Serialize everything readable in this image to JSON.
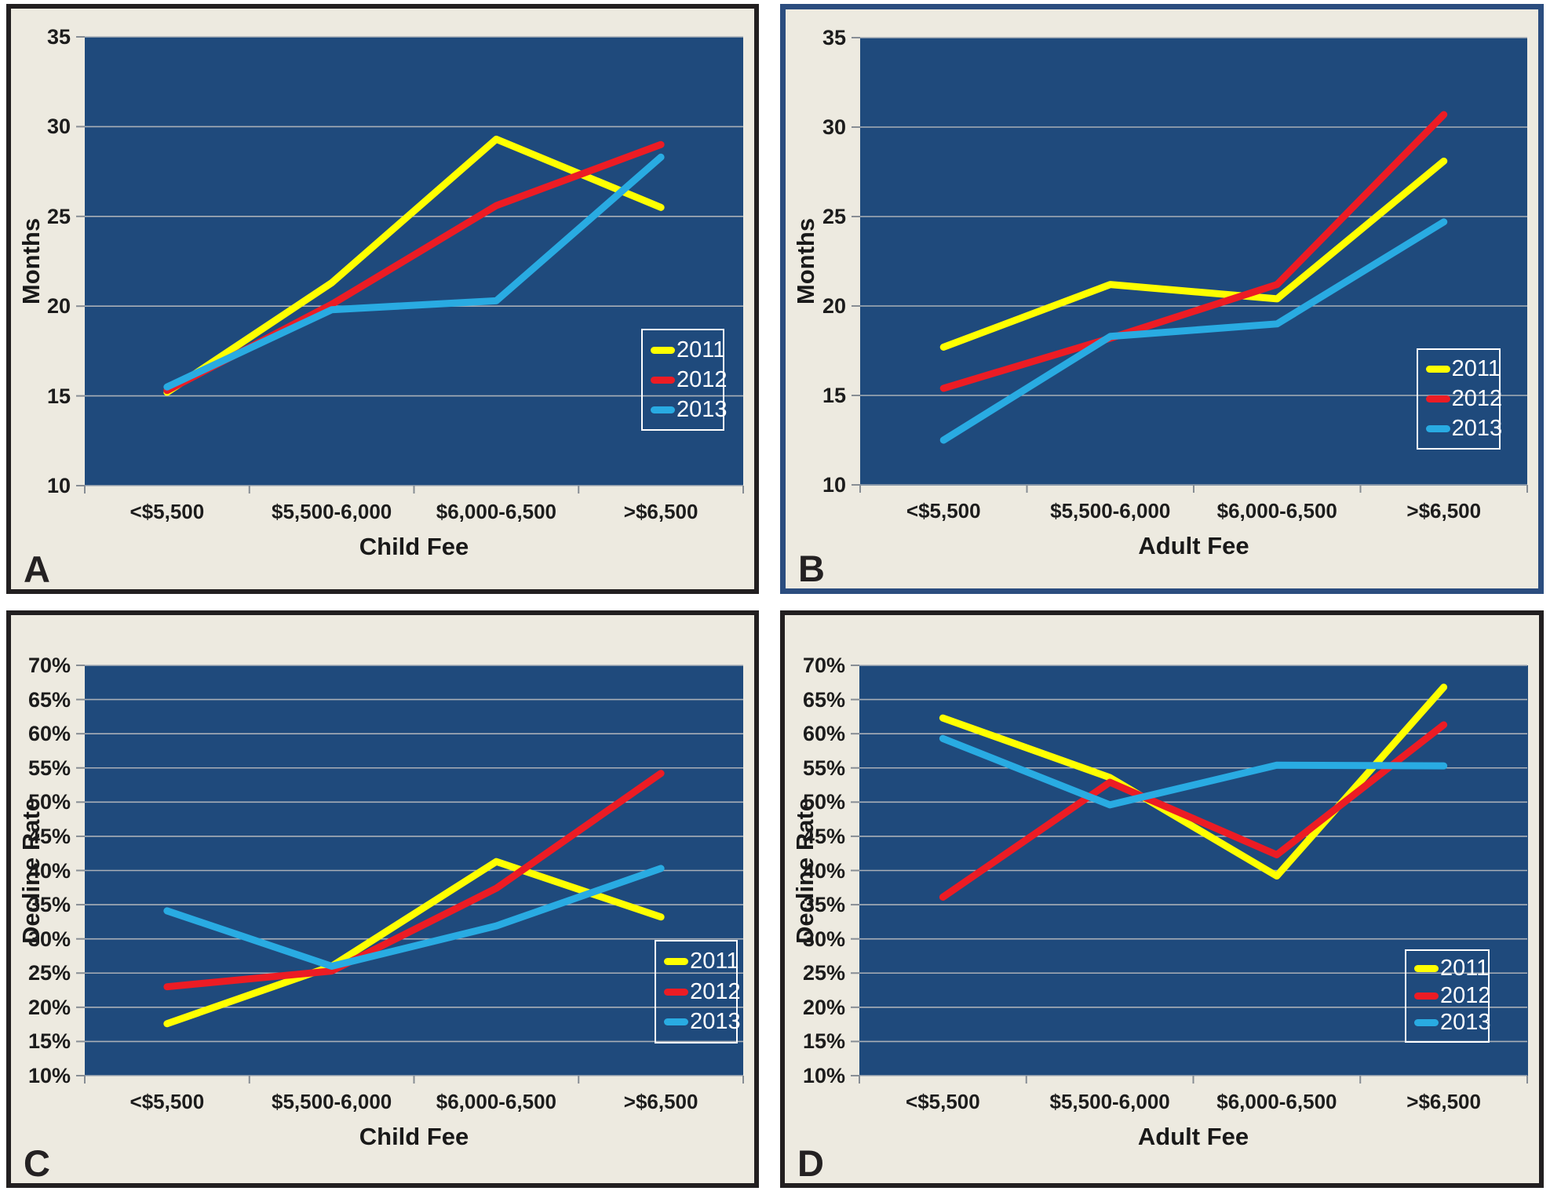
{
  "figure_title": "",
  "colors": {
    "panel_background": "#edeae0",
    "plot_background": "#1f4a7c",
    "gridline": "#a9afb7",
    "tick": "#878d94",
    "series_2011": "#ffff00",
    "series_2012": "#ec1c24",
    "series_2013": "#29abe2",
    "legend_border": "#ffffff",
    "legend_text": "#ffffff",
    "panel_border_black": "#221f20",
    "panel_border_blue": "#2b4d7f"
  },
  "chart_data": [
    {
      "type": "line",
      "panel_label": "A",
      "categories": [
        "<$5,500",
        "$5,500-6,000",
        "$6,000-6,500",
        ">$6,500"
      ],
      "xlabel": "Child Fee",
      "ylabel": "Months",
      "ylim": [
        10,
        35
      ],
      "ytick_step": 5,
      "ytick_suffix": "",
      "grid": true,
      "legend_position": {
        "left": 0.848,
        "top": 0.552,
        "width": 0.112,
        "height": 0.175
      },
      "series": [
        {
          "name": "2011",
          "color": "#ffff00",
          "values": [
            15.2,
            21.3,
            29.3,
            25.5
          ]
        },
        {
          "name": "2012",
          "color": "#ec1c24",
          "values": [
            15.3,
            20.1,
            25.6,
            29.0
          ]
        },
        {
          "name": "2013",
          "color": "#29abe2",
          "values": [
            15.5,
            19.8,
            20.3,
            28.3
          ]
        }
      ]
    },
    {
      "type": "line",
      "panel_label": "B",
      "categories": [
        "<$5,500",
        "$5,500-6,000",
        "$6,000-6,500",
        ">$6,500"
      ],
      "xlabel": "Adult Fee",
      "ylabel": "Months",
      "ylim": [
        10,
        35
      ],
      "ytick_step": 5,
      "ytick_suffix": "",
      "grid": true,
      "legend_position": {
        "left": 0.838,
        "top": 0.585,
        "width": 0.112,
        "height": 0.175
      },
      "series": [
        {
          "name": "2011",
          "color": "#ffff00",
          "values": [
            17.7,
            21.2,
            20.4,
            28.1
          ]
        },
        {
          "name": "2012",
          "color": "#ec1c24",
          "values": [
            15.4,
            18.2,
            21.2,
            30.7
          ]
        },
        {
          "name": "2013",
          "color": "#29abe2",
          "values": [
            12.5,
            18.3,
            19.0,
            24.7
          ]
        }
      ]
    },
    {
      "type": "line",
      "panel_label": "C",
      "categories": [
        "<$5,500",
        "$5,500-6,000",
        "$6,000-6,500",
        ">$6,500"
      ],
      "xlabel": "Child Fee",
      "ylabel": "Decline Rate",
      "ylim": [
        10,
        70
      ],
      "ytick_step": 5,
      "ytick_suffix": "%",
      "grid": true,
      "legend_position": {
        "left": 0.866,
        "top": 0.572,
        "width": 0.112,
        "height": 0.182
      },
      "series": [
        {
          "name": "2011",
          "color": "#ffff00",
          "values": [
            17.6,
            26.0,
            41.3,
            33.2
          ]
        },
        {
          "name": "2012",
          "color": "#ec1c24",
          "values": [
            23.0,
            25.3,
            37.4,
            54.2
          ]
        },
        {
          "name": "2013",
          "color": "#29abe2",
          "values": [
            34.1,
            26.0,
            31.9,
            40.3
          ]
        }
      ]
    },
    {
      "type": "line",
      "panel_label": "D",
      "categories": [
        "<$5,500",
        "$5,500-6,000",
        "$6,000-6,500",
        ">$6,500"
      ],
      "xlabel": "Adult Fee",
      "ylabel": "Decline Rate",
      "ylim": [
        10,
        70
      ],
      "ytick_step": 5,
      "ytick_suffix": "%",
      "grid": true,
      "legend_position": {
        "left": 0.822,
        "top": 0.588,
        "width": 0.112,
        "height": 0.165
      },
      "series": [
        {
          "name": "2011",
          "color": "#ffff00",
          "values": [
            62.3,
            53.6,
            39.2,
            66.8
          ]
        },
        {
          "name": "2012",
          "color": "#ec1c24",
          "values": [
            36.1,
            52.9,
            42.3,
            61.3
          ]
        },
        {
          "name": "2013",
          "color": "#29abe2",
          "values": [
            59.3,
            49.6,
            55.4,
            55.3
          ]
        }
      ]
    }
  ]
}
